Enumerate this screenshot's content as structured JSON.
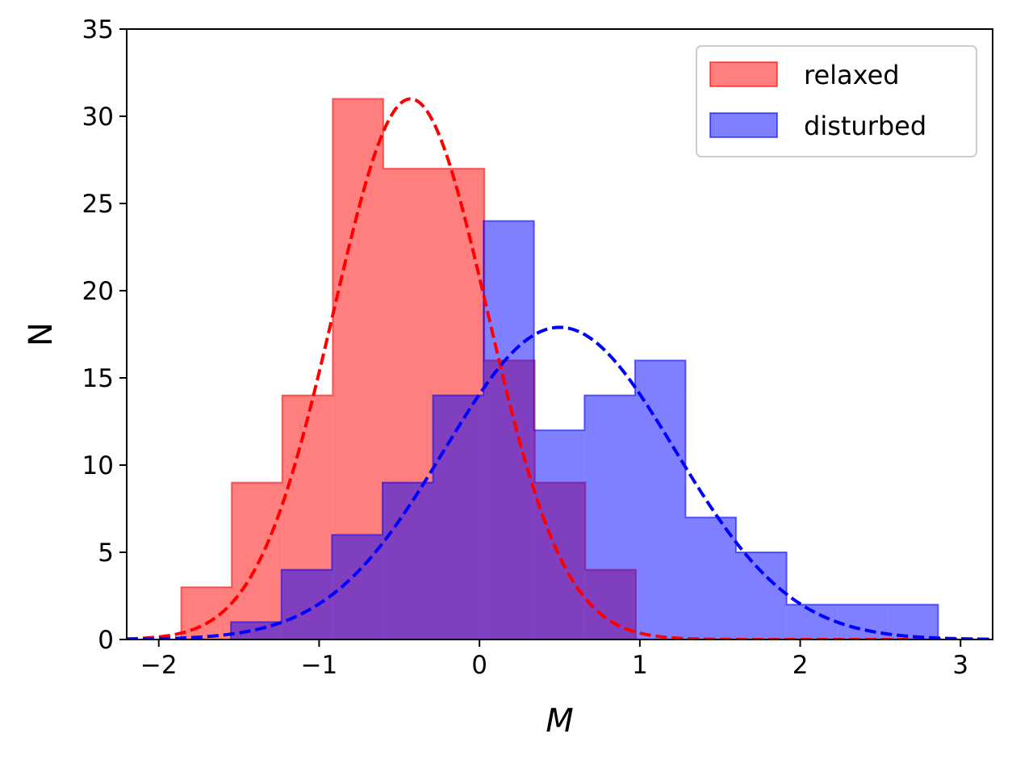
{
  "chart_data": {
    "type": "histogram",
    "xlabel": "M",
    "ylabel": "N",
    "xlim": [
      -2.2,
      3.2
    ],
    "ylim": [
      0,
      35
    ],
    "xticks": [
      -2,
      -1,
      0,
      1,
      2,
      3
    ],
    "xtick_labels": [
      "−2",
      "−1",
      "0",
      "1",
      "2",
      "3"
    ],
    "yticks": [
      0,
      5,
      10,
      15,
      20,
      25,
      30,
      35
    ],
    "ytick_labels": [
      "0",
      "5",
      "10",
      "15",
      "20",
      "25",
      "30",
      "35"
    ],
    "grid": false,
    "legend_position": "top-right",
    "series": [
      {
        "name": "relaxed",
        "color": "#ff0000",
        "alpha": 0.5,
        "bin_edges": [
          -1.86,
          -1.545,
          -1.23,
          -0.915,
          -0.6,
          -0.285,
          0.03,
          0.345,
          0.66,
          0.975
        ],
        "counts": [
          3,
          9,
          14,
          31,
          27,
          27,
          16,
          9,
          4
        ],
        "fit": {
          "type": "gaussian",
          "mu": -0.43,
          "sigma": 0.48,
          "peak": 31
        }
      },
      {
        "name": "disturbed",
        "color": "#0000ff",
        "alpha": 0.5,
        "bin_edges": [
          -1.55,
          -1.235,
          -0.92,
          -0.605,
          -0.29,
          0.025,
          0.34,
          0.655,
          0.97,
          1.285,
          1.6,
          1.915,
          2.23,
          2.545,
          2.86
        ],
        "counts": [
          1,
          4,
          6,
          9,
          14,
          24,
          12,
          14,
          16,
          7,
          5,
          2,
          2,
          2
        ],
        "fit": {
          "type": "gaussian",
          "mu": 0.5,
          "sigma": 0.72,
          "peak": 17.9
        }
      }
    ]
  }
}
